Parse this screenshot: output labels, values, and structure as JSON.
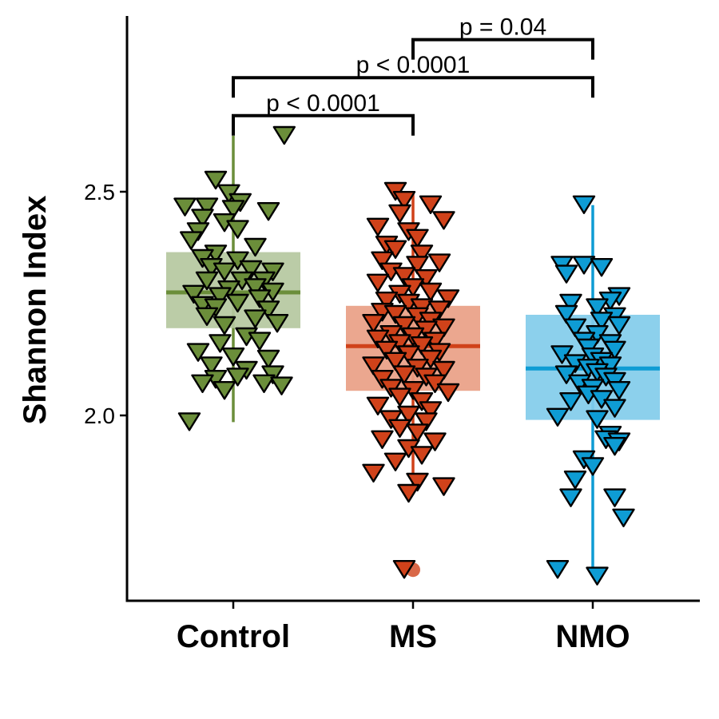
{
  "chart_data": {
    "type": "scatter",
    "subtype": "boxplot-with-jittered-points",
    "title": "",
    "xlabel": "",
    "ylabel": "Shannon Index",
    "ylim": [
      1.6,
      2.88
    ],
    "yticks": [
      2.0,
      2.5
    ],
    "ytick_labels": [
      "2.0",
      "2.5"
    ],
    "grid": false,
    "legend": "none",
    "categories": [
      "Control",
      "MS",
      "NMO"
    ],
    "series": [
      {
        "category": "Control",
        "color": "#6B8E3A",
        "box_fill": "#B5C8A0",
        "box": {
          "q1": 2.195,
          "median": 2.275,
          "q3": 2.365,
          "whisker_low": 1.985,
          "whisker_high": 2.625
        },
        "outliers": [],
        "points": [
          {
            "dx": 0.58,
            "y": 2.625
          },
          {
            "dx": -0.2,
            "y": 2.525
          },
          {
            "dx": -0.05,
            "y": 2.495
          },
          {
            "dx": 0.08,
            "y": 2.475
          },
          {
            "dx": -0.55,
            "y": 2.465
          },
          {
            "dx": 0.0,
            "y": 2.46
          },
          {
            "dx": -0.3,
            "y": 2.465
          },
          {
            "dx": 0.4,
            "y": 2.455
          },
          {
            "dx": -0.35,
            "y": 2.44
          },
          {
            "dx": -0.1,
            "y": 2.43
          },
          {
            "dx": -0.4,
            "y": 2.41
          },
          {
            "dx": 0.05,
            "y": 2.415
          },
          {
            "dx": -0.48,
            "y": 2.39
          },
          {
            "dx": 0.25,
            "y": 2.375
          },
          {
            "dx": -0.2,
            "y": 2.36
          },
          {
            "dx": -0.35,
            "y": 2.35
          },
          {
            "dx": 0.05,
            "y": 2.345
          },
          {
            "dx": -0.25,
            "y": 2.33
          },
          {
            "dx": -0.1,
            "y": 2.32
          },
          {
            "dx": 0.2,
            "y": 2.325
          },
          {
            "dx": 0.45,
            "y": 2.32
          },
          {
            "dx": -0.3,
            "y": 2.3
          },
          {
            "dx": 0.1,
            "y": 2.3
          },
          {
            "dx": 0.35,
            "y": 2.3
          },
          {
            "dx": 0.25,
            "y": 2.285
          },
          {
            "dx": -0.05,
            "y": 2.28
          },
          {
            "dx": 0.45,
            "y": 2.275
          },
          {
            "dx": -0.45,
            "y": 2.27
          },
          {
            "dx": -0.15,
            "y": 2.265
          },
          {
            "dx": 0.3,
            "y": 2.26
          },
          {
            "dx": 0.05,
            "y": 2.25
          },
          {
            "dx": -0.35,
            "y": 2.245
          },
          {
            "dx": -0.2,
            "y": 2.24
          },
          {
            "dx": 0.4,
            "y": 2.235
          },
          {
            "dx": -0.3,
            "y": 2.22
          },
          {
            "dx": 0.25,
            "y": 2.215
          },
          {
            "dx": -0.1,
            "y": 2.2
          },
          {
            "dx": 0.5,
            "y": 2.205
          },
          {
            "dx": 0.15,
            "y": 2.175
          },
          {
            "dx": -0.15,
            "y": 2.16
          },
          {
            "dx": 0.3,
            "y": 2.165
          },
          {
            "dx": -0.4,
            "y": 2.14
          },
          {
            "dx": 0.0,
            "y": 2.13
          },
          {
            "dx": 0.4,
            "y": 2.125
          },
          {
            "dx": -0.25,
            "y": 2.11
          },
          {
            "dx": 0.15,
            "y": 2.1
          },
          {
            "dx": 0.45,
            "y": 2.09
          },
          {
            "dx": -0.2,
            "y": 2.08
          },
          {
            "dx": 0.05,
            "y": 2.085
          },
          {
            "dx": 0.35,
            "y": 2.07
          },
          {
            "dx": -0.35,
            "y": 2.07
          },
          {
            "dx": -0.1,
            "y": 2.055
          },
          {
            "dx": 0.55,
            "y": 2.065
          },
          {
            "dx": -0.5,
            "y": 1.985
          }
        ]
      },
      {
        "category": "MS",
        "color": "#D0421A",
        "box_fill": "#E9A085",
        "box": {
          "q1": 2.055,
          "median": 2.155,
          "q3": 2.245,
          "whisker_low": 1.845,
          "whisker_high": 2.5
        },
        "outliers": [
          1.655
        ],
        "points": [
          {
            "dx": -0.2,
            "y": 2.5
          },
          {
            "dx": -0.1,
            "y": 2.48
          },
          {
            "dx": 0.2,
            "y": 2.47
          },
          {
            "dx": -0.15,
            "y": 2.45
          },
          {
            "dx": 0.35,
            "y": 2.435
          },
          {
            "dx": -0.4,
            "y": 2.42
          },
          {
            "dx": -0.05,
            "y": 2.41
          },
          {
            "dx": 0.05,
            "y": 2.395
          },
          {
            "dx": -0.3,
            "y": 2.38
          },
          {
            "dx": -0.2,
            "y": 2.37
          },
          {
            "dx": 0.1,
            "y": 2.36
          },
          {
            "dx": -0.35,
            "y": 2.345
          },
          {
            "dx": 0.3,
            "y": 2.34
          },
          {
            "dx": 0.05,
            "y": 2.335
          },
          {
            "dx": -0.25,
            "y": 2.32
          },
          {
            "dx": -0.1,
            "y": 2.31
          },
          {
            "dx": 0.15,
            "y": 2.305
          },
          {
            "dx": -0.4,
            "y": 2.295
          },
          {
            "dx": 0.0,
            "y": 2.285
          },
          {
            "dx": 0.2,
            "y": 2.275
          },
          {
            "dx": -0.15,
            "y": 2.27
          },
          {
            "dx": 0.4,
            "y": 2.26
          },
          {
            "dx": -0.3,
            "y": 2.255
          },
          {
            "dx": -0.05,
            "y": 2.25
          },
          {
            "dx": 0.1,
            "y": 2.24
          },
          {
            "dx": 0.3,
            "y": 2.235
          },
          {
            "dx": -0.35,
            "y": 2.23
          },
          {
            "dx": -0.2,
            "y": 2.225
          },
          {
            "dx": 0.05,
            "y": 2.22
          },
          {
            "dx": 0.2,
            "y": 2.21
          },
          {
            "dx": -0.45,
            "y": 2.205
          },
          {
            "dx": -0.1,
            "y": 2.2
          },
          {
            "dx": 0.35,
            "y": 2.195
          },
          {
            "dx": 0.15,
            "y": 2.19
          },
          {
            "dx": -0.25,
            "y": 2.18
          },
          {
            "dx": 0.0,
            "y": 2.175
          },
          {
            "dx": -0.4,
            "y": 2.17
          },
          {
            "dx": 0.25,
            "y": 2.165
          },
          {
            "dx": -0.15,
            "y": 2.16
          },
          {
            "dx": 0.1,
            "y": 2.155
          },
          {
            "dx": -0.3,
            "y": 2.145
          },
          {
            "dx": 0.3,
            "y": 2.14
          },
          {
            "dx": -0.05,
            "y": 2.135
          },
          {
            "dx": 0.2,
            "y": 2.125
          },
          {
            "dx": -0.2,
            "y": 2.12
          },
          {
            "dx": -0.45,
            "y": 2.11
          },
          {
            "dx": 0.05,
            "y": 2.105
          },
          {
            "dx": 0.35,
            "y": 2.1
          },
          {
            "dx": -0.1,
            "y": 2.09
          },
          {
            "dx": 0.15,
            "y": 2.085
          },
          {
            "dx": -0.35,
            "y": 2.08
          },
          {
            "dx": 0.25,
            "y": 2.07
          },
          {
            "dx": -0.25,
            "y": 2.06
          },
          {
            "dx": 0.0,
            "y": 2.055
          },
          {
            "dx": 0.4,
            "y": 2.05
          },
          {
            "dx": -0.15,
            "y": 2.04
          },
          {
            "dx": 0.1,
            "y": 2.03
          },
          {
            "dx": -0.4,
            "y": 2.02
          },
          {
            "dx": 0.2,
            "y": 2.01
          },
          {
            "dx": -0.05,
            "y": 2.0
          },
          {
            "dx": -0.25,
            "y": 1.99
          },
          {
            "dx": 0.15,
            "y": 1.985
          },
          {
            "dx": -0.15,
            "y": 1.97
          },
          {
            "dx": 0.05,
            "y": 1.96
          },
          {
            "dx": -0.35,
            "y": 1.945
          },
          {
            "dx": 0.25,
            "y": 1.94
          },
          {
            "dx": -0.05,
            "y": 1.925
          },
          {
            "dx": 0.1,
            "y": 1.91
          },
          {
            "dx": -0.2,
            "y": 1.895
          },
          {
            "dx": -0.45,
            "y": 1.87
          },
          {
            "dx": 0.05,
            "y": 1.85
          },
          {
            "dx": 0.35,
            "y": 1.84
          },
          {
            "dx": -0.05,
            "y": 1.825
          },
          {
            "dx": -0.1,
            "y": 1.655
          }
        ]
      },
      {
        "category": "NMO",
        "color": "#0E9CD4",
        "box_fill": "#82CCEA",
        "box": {
          "q1": 1.99,
          "median": 2.105,
          "q3": 2.225,
          "whisker_low": 1.64,
          "whisker_high": 2.47
        },
        "outliers": [],
        "points": [
          {
            "dx": -0.1,
            "y": 2.47
          },
          {
            "dx": -0.35,
            "y": 2.335
          },
          {
            "dx": -0.1,
            "y": 2.335
          },
          {
            "dx": 0.1,
            "y": 2.33
          },
          {
            "dx": -0.3,
            "y": 2.315
          },
          {
            "dx": 0.3,
            "y": 2.265
          },
          {
            "dx": 0.2,
            "y": 2.255
          },
          {
            "dx": -0.25,
            "y": 2.25
          },
          {
            "dx": 0.05,
            "y": 2.24
          },
          {
            "dx": -0.3,
            "y": 2.225
          },
          {
            "dx": 0.25,
            "y": 2.22
          },
          {
            "dx": 0.1,
            "y": 2.21
          },
          {
            "dx": 0.3,
            "y": 2.2
          },
          {
            "dx": -0.2,
            "y": 2.195
          },
          {
            "dx": 0.05,
            "y": 2.18
          },
          {
            "dx": -0.1,
            "y": 2.165
          },
          {
            "dx": 0.2,
            "y": 2.16
          },
          {
            "dx": -0.05,
            "y": 2.15
          },
          {
            "dx": 0.25,
            "y": 2.145
          },
          {
            "dx": -0.35,
            "y": 2.135
          },
          {
            "dx": 0.0,
            "y": 2.13
          },
          {
            "dx": 0.1,
            "y": 2.12
          },
          {
            "dx": -0.2,
            "y": 2.115
          },
          {
            "dx": 0.2,
            "y": 2.11
          },
          {
            "dx": -0.05,
            "y": 2.105
          },
          {
            "dx": 0.05,
            "y": 2.095
          },
          {
            "dx": -0.3,
            "y": 2.09
          },
          {
            "dx": 0.15,
            "y": 2.085
          },
          {
            "dx": 0.25,
            "y": 2.075
          },
          {
            "dx": -0.15,
            "y": 2.07
          },
          {
            "dx": 0.0,
            "y": 2.06
          },
          {
            "dx": 0.3,
            "y": 2.055
          },
          {
            "dx": -0.05,
            "y": 2.045
          },
          {
            "dx": 0.1,
            "y": 2.035
          },
          {
            "dx": -0.25,
            "y": 2.03
          },
          {
            "dx": 0.25,
            "y": 2.015
          },
          {
            "dx": -0.4,
            "y": 1.995
          },
          {
            "dx": 0.05,
            "y": 1.99
          },
          {
            "dx": 0.2,
            "y": 1.955
          },
          {
            "dx": 0.15,
            "y": 1.945
          },
          {
            "dx": 0.3,
            "y": 1.94
          },
          {
            "dx": 0.25,
            "y": 1.93
          },
          {
            "dx": -0.1,
            "y": 1.9
          },
          {
            "dx": 0.0,
            "y": 1.885
          },
          {
            "dx": -0.2,
            "y": 1.855
          },
          {
            "dx": 0.25,
            "y": 1.815
          },
          {
            "dx": -0.25,
            "y": 1.815
          },
          {
            "dx": 0.35,
            "y": 1.77
          },
          {
            "dx": -0.4,
            "y": 1.655
          },
          {
            "dx": 0.05,
            "y": 1.64
          }
        ]
      }
    ],
    "annotations": [
      {
        "from": "Control",
        "to": "MS",
        "label": "p < 0.0001",
        "y": 2.67
      },
      {
        "from": "Control",
        "to": "NMO",
        "label": "p < 0.0001",
        "y": 2.755
      },
      {
        "from": "MS",
        "to": "NMO",
        "label": "p = 0.04",
        "y": 2.84
      }
    ]
  }
}
